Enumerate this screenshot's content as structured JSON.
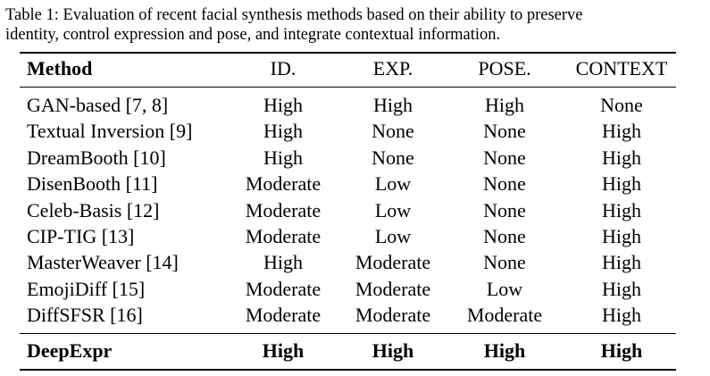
{
  "caption": {
    "line1": "Table 1: Evaluation of recent facial synthesis methods based on their ability to preserve",
    "line2": "identity, control expression and pose, and integrate contextual information."
  },
  "table": {
    "headers": {
      "method": "Method",
      "id": "ID.",
      "exp": "EXP.",
      "pose": "POSE.",
      "context": "CONTEXT"
    },
    "rows": [
      {
        "method": "GAN-based [7, 8]",
        "id": "High",
        "exp": "High",
        "pose": "High",
        "context": "None"
      },
      {
        "method": "Textual Inversion [9]",
        "id": "High",
        "exp": "None",
        "pose": "None",
        "context": "High"
      },
      {
        "method": "DreamBooth [10]",
        "id": "High",
        "exp": "None",
        "pose": "None",
        "context": "High"
      },
      {
        "method": "DisenBooth [11]",
        "id": "Moderate",
        "exp": "Low",
        "pose": "None",
        "context": "High"
      },
      {
        "method": "Celeb-Basis  [12]",
        "id": "Moderate",
        "exp": "Low",
        "pose": "None",
        "context": "High"
      },
      {
        "method": "CIP-TIG [13]",
        "id": "Moderate",
        "exp": "Low",
        "pose": "None",
        "context": "High"
      },
      {
        "method": "MasterWeaver [14]",
        "id": "High",
        "exp": "Moderate",
        "pose": "None",
        "context": "High"
      },
      {
        "method": "EmojiDiff [15]",
        "id": "Moderate",
        "exp": "Moderate",
        "pose": "Low",
        "context": "High"
      },
      {
        "method": "DiffSFSR [16]",
        "id": "Moderate",
        "exp": "Moderate",
        "pose": "Moderate",
        "context": "High"
      }
    ],
    "final_row": {
      "method": "DeepExpr",
      "id": "High",
      "exp": "High",
      "pose": "High",
      "context": "High"
    }
  }
}
